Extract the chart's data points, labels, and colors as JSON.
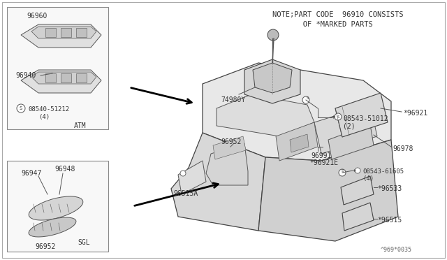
{
  "bg_color": "#ffffff",
  "line_color": "#555555",
  "text_color": "#333333",
  "title_note_1": "NOTE;PART CODE  96910 CONSISTS",
  "title_note_2": "       OF *MARKED PARTS",
  "diagram_id": "^969*0035",
  "figsize": [
    6.4,
    3.72
  ],
  "dpi": 100
}
